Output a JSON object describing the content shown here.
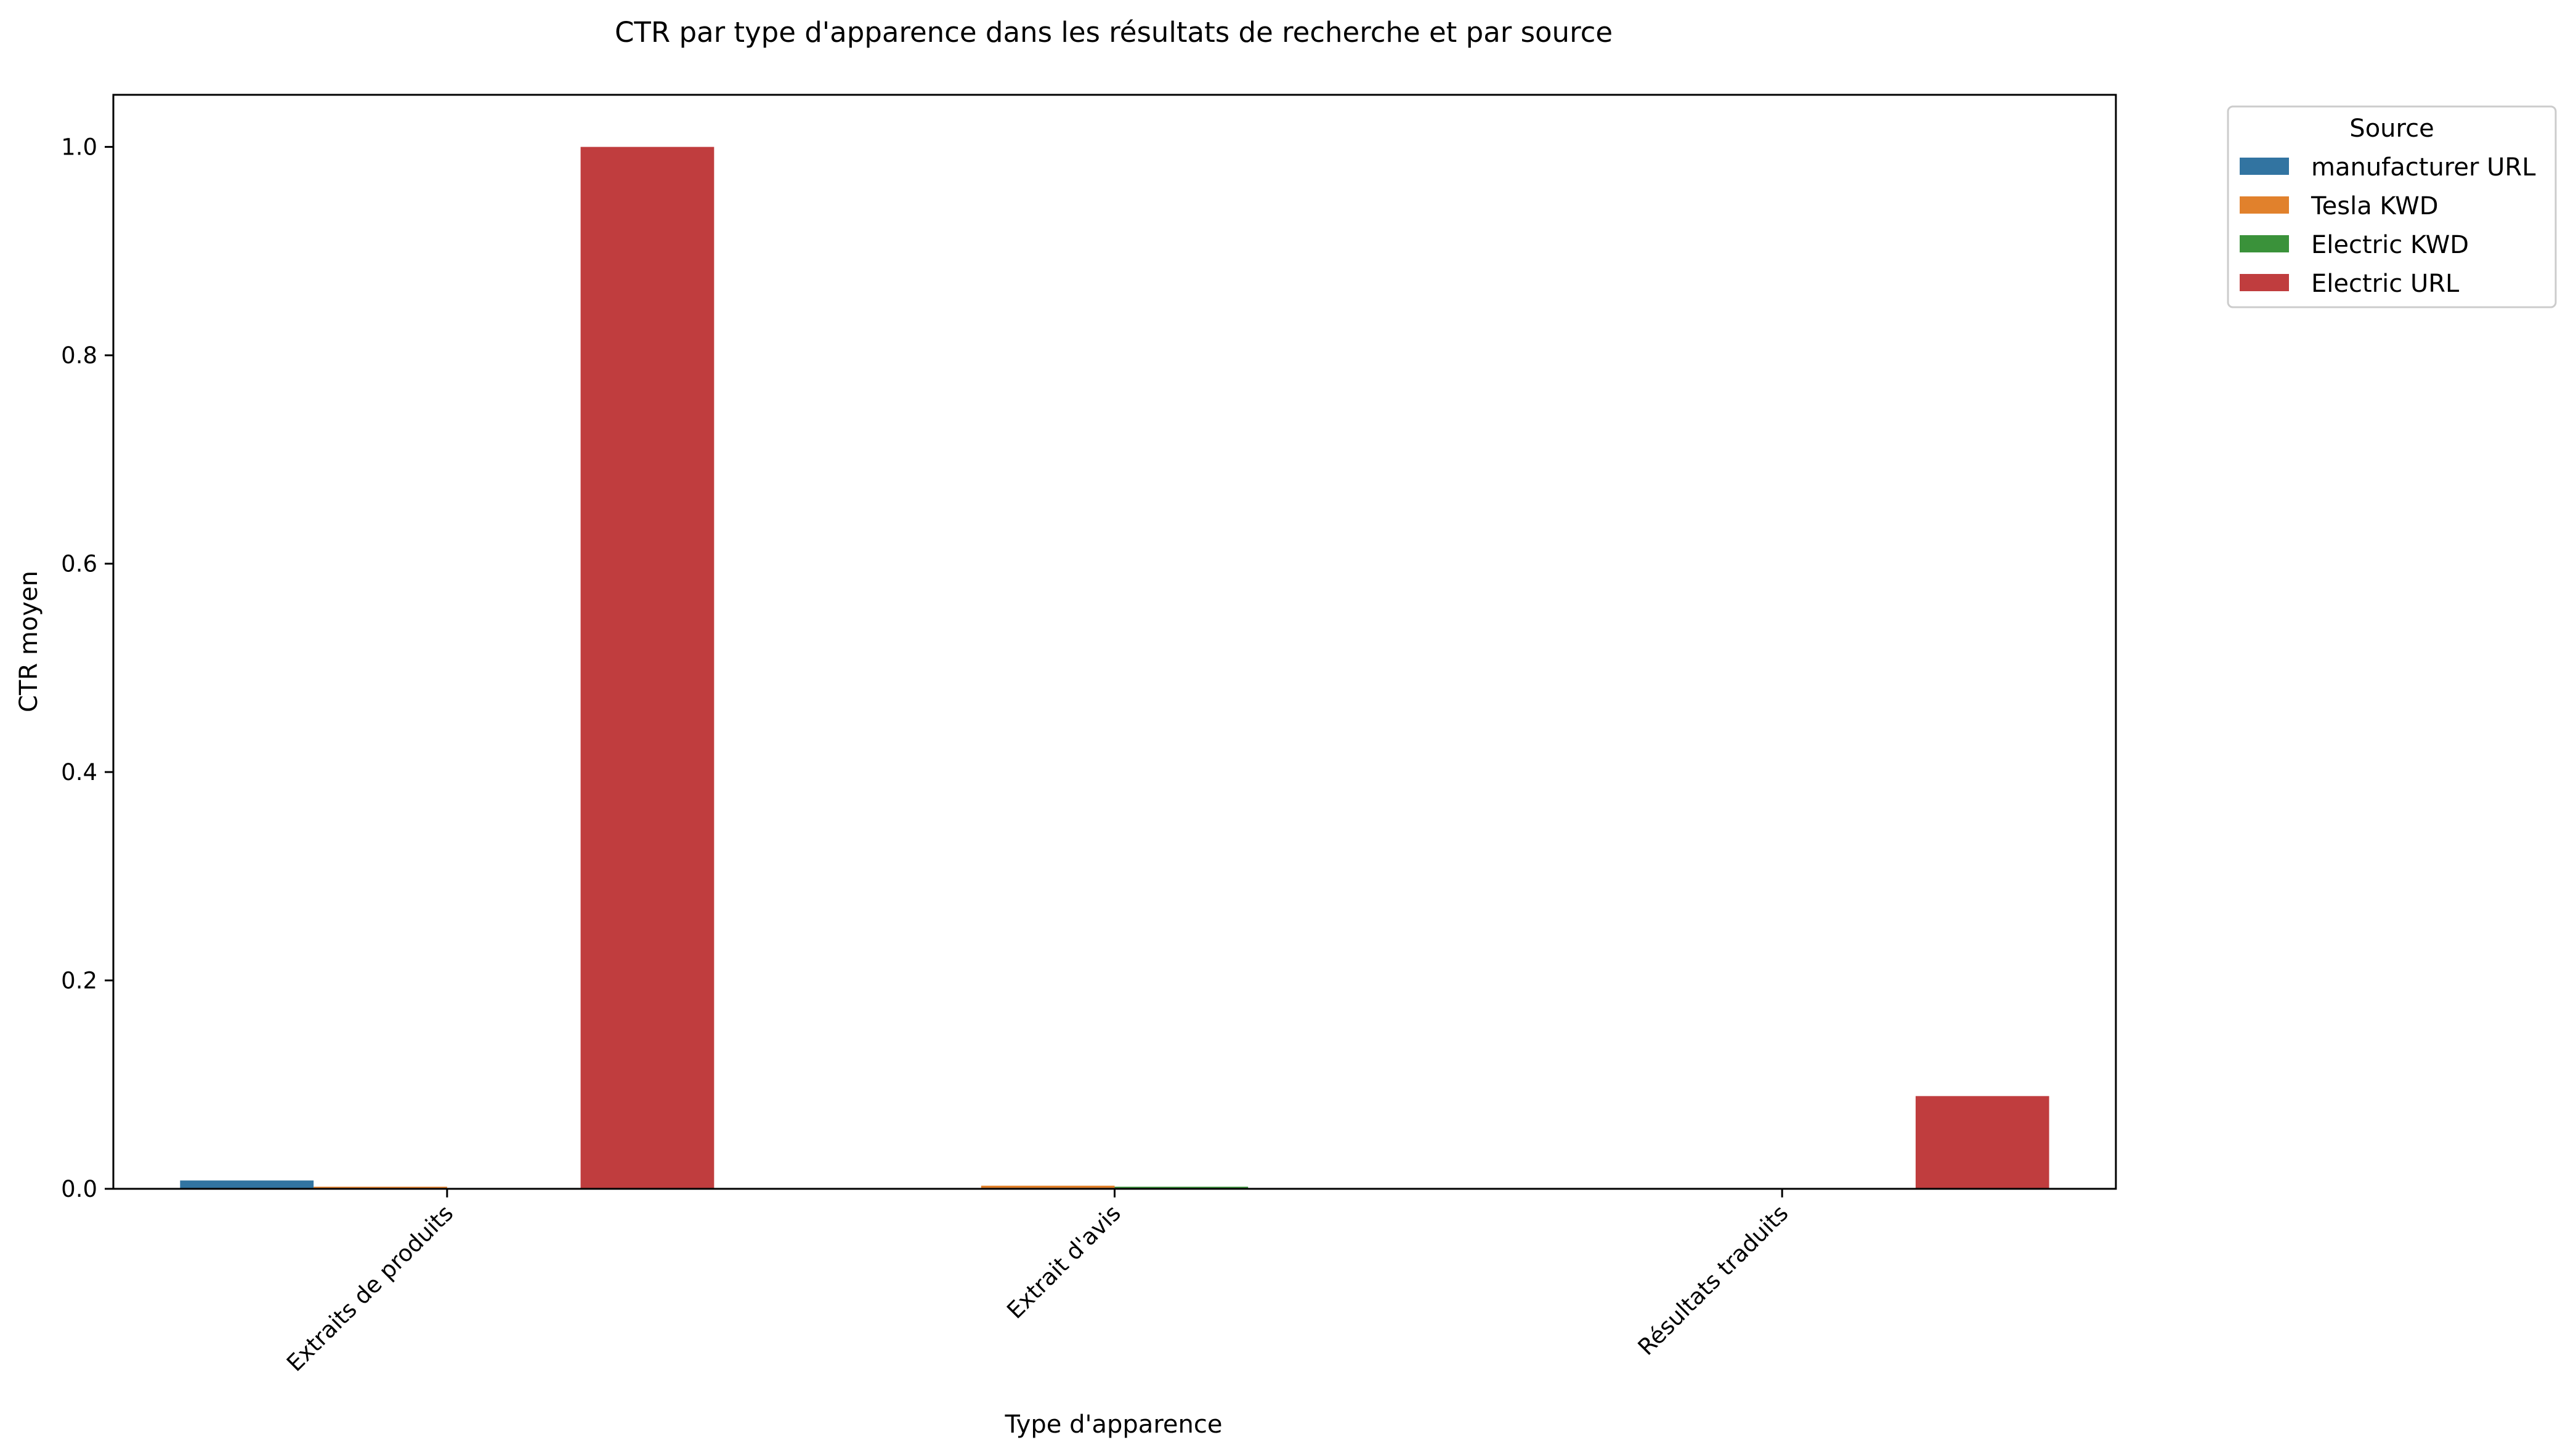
{
  "chart_data": {
    "type": "bar",
    "title": "CTR par type d'apparence dans les résultats de recherche et par source",
    "xlabel": "Type d'apparence",
    "ylabel": "CTR moyen",
    "categories": [
      "Extraits de produits",
      "Extrait d'avis",
      "Résultats traduits"
    ],
    "ylim": [
      0,
      1.05
    ],
    "yticks": [
      "0.0",
      "0.2",
      "0.4",
      "0.6",
      "0.8",
      "1.0"
    ],
    "grid": false,
    "legend": {
      "title": "Source",
      "placement": "outside-top-right"
    },
    "series": [
      {
        "name": "manufacturer URL",
        "color": "#3274a1",
        "values": [
          0.008,
          0,
          0
        ]
      },
      {
        "name": "Tesla KWD",
        "color": "#e1812c",
        "values": [
          0.002,
          0.003,
          0
        ]
      },
      {
        "name": "Electric KWD",
        "color": "#3a923a",
        "values": [
          0,
          0.002,
          0
        ]
      },
      {
        "name": "Electric URL",
        "color": "#c03d3e",
        "values": [
          1.0,
          0,
          0.089
        ]
      }
    ]
  }
}
